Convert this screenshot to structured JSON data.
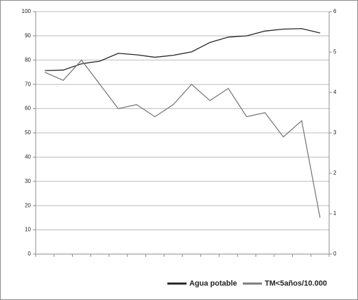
{
  "chart_data": {
    "type": "line",
    "categories": [
      null,
      null,
      null,
      null,
      null,
      null,
      null,
      null,
      null,
      null,
      null,
      null,
      null,
      null,
      null,
      null
    ],
    "series": [
      {
        "name": "Agua potable",
        "color": "#222222",
        "values": [
          75.7,
          75.9,
          78.5,
          79.6,
          82.8,
          82.2,
          81.2,
          82.0,
          83.4,
          87.3,
          89.5,
          90.0,
          92.0,
          92.8,
          93.0,
          91.2
        ]
      },
      {
        "name": "TM<5años/10.000",
        "color": "#7a7a7a",
        "axis": "y2",
        "values": [
          4.5,
          4.3,
          4.8,
          4.2,
          3.6,
          3.7,
          3.4,
          3.7,
          4.2,
          3.8,
          4.1,
          3.4,
          3.5,
          2.9,
          3.3,
          0.9
        ]
      }
    ],
    "ylim": [
      0,
      100
    ],
    "yticks": [
      0,
      10,
      20,
      30,
      40,
      50,
      60,
      70,
      80,
      90,
      100
    ],
    "y2lim": [
      0,
      6
    ],
    "y2ticks": [
      0,
      1,
      2,
      3,
      4,
      5,
      6
    ],
    "grid": true,
    "legend": "bottom"
  }
}
